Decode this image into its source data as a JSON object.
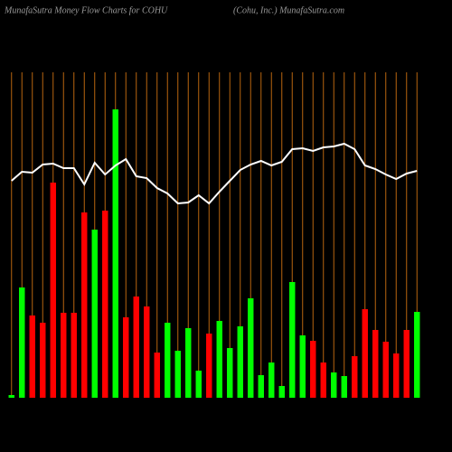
{
  "chart_data": {
    "type": "bar",
    "title": "MunafaSutra  Money Flow  Charts for COHU",
    "subtitle": "(Cohu, Inc.) MunafaSutra.com",
    "categories": [
      null,
      null,
      null,
      null,
      null,
      null,
      null,
      null,
      null,
      null,
      null,
      null,
      null,
      null,
      null,
      null,
      null,
      null,
      null,
      null,
      null,
      null,
      null,
      null,
      null,
      null,
      null,
      null,
      null,
      null,
      null,
      null,
      null,
      null,
      null,
      null,
      null,
      null,
      null,
      null
    ],
    "values": [
      3,
      122,
      91,
      83,
      238,
      94,
      94,
      205,
      186,
      207,
      319,
      89,
      112,
      101,
      50,
      83,
      52,
      77,
      30,
      71,
      85,
      55,
      79,
      110,
      25,
      39,
      13,
      128,
      69,
      63,
      39,
      28,
      24,
      46,
      98,
      75,
      62,
      49,
      75,
      95
    ],
    "colors": [
      "#00ff00",
      "#00ff00",
      "#ff0000",
      "#ff0000",
      "#ff0000",
      "#ff0000",
      "#ff0000",
      "#ff0000",
      "#00ff00",
      "#ff0000",
      "#00ff00",
      "#ff0000",
      "#ff0000",
      "#ff0000",
      "#ff0000",
      "#00ff00",
      "#00ff00",
      "#00ff00",
      "#00ff00",
      "#ff0000",
      "#00ff00",
      "#00ff00",
      "#00ff00",
      "#00ff00",
      "#00ff00",
      "#00ff00",
      "#00ff00",
      "#00ff00",
      "#00ff00",
      "#ff0000",
      "#ff0000",
      "#00ff00",
      "#00ff00",
      "#ff0000",
      "#ff0000",
      "#ff0000",
      "#ff0000",
      "#ff0000",
      "#ff0000",
      "#00ff00"
    ],
    "line": {
      "color": "#ffffff",
      "values": [
        240,
        250,
        249,
        258,
        259,
        254,
        254,
        236,
        260,
        247,
        257,
        264,
        245,
        243,
        232,
        226,
        215,
        216,
        224,
        215,
        228,
        240,
        252,
        258,
        262,
        257,
        261,
        275,
        276,
        273,
        277,
        278,
        281,
        275,
        257,
        253,
        247,
        242,
        248,
        251
      ]
    },
    "ylim": [
      0,
      340
    ],
    "grid_color": "#b8650f"
  }
}
